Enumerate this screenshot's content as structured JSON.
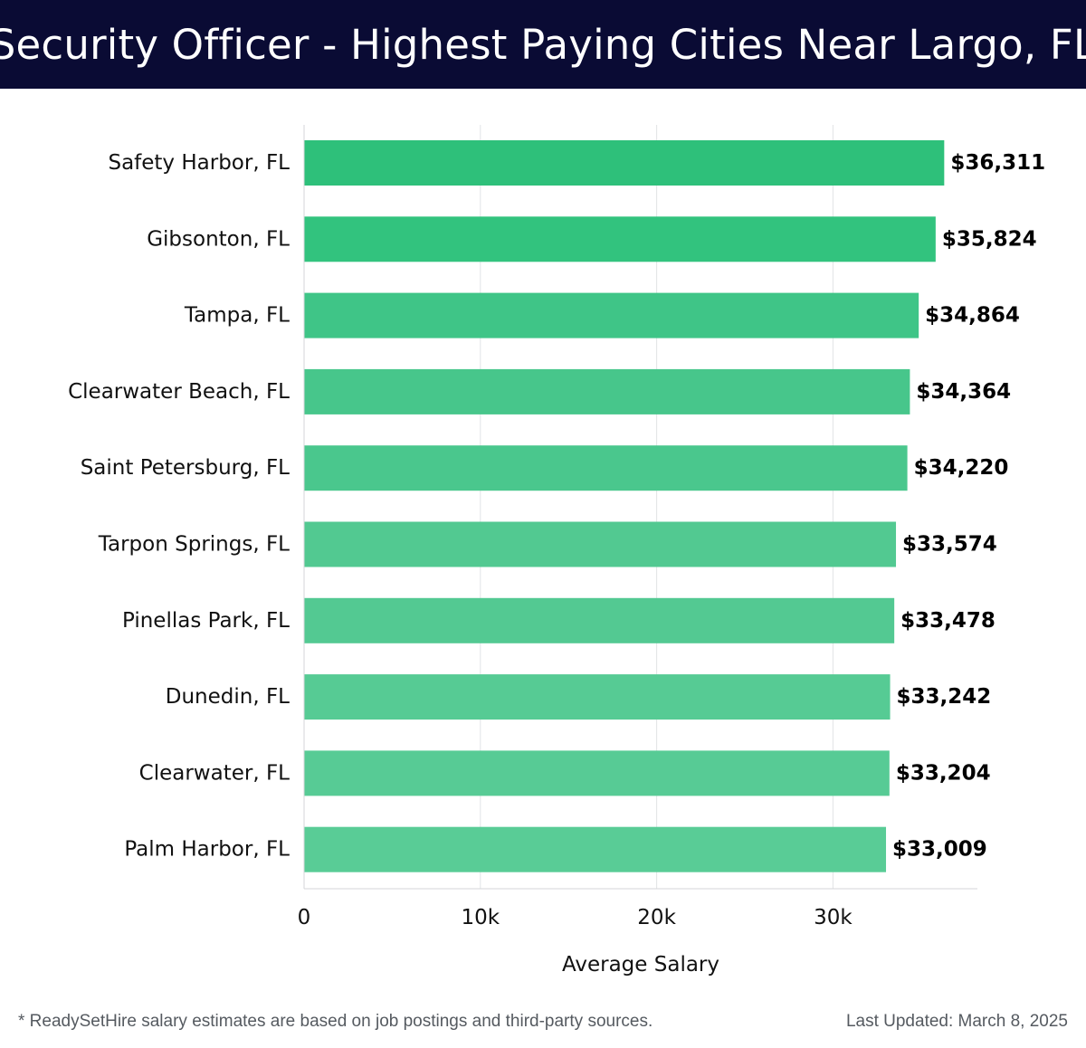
{
  "header": {
    "title": "Security Officer - Highest Paying Cities Near Largo, FL"
  },
  "chart_data": {
    "type": "bar",
    "orientation": "horizontal",
    "title": "Security Officer - Highest Paying Cities Near Largo, FL",
    "xlabel": "Average Salary",
    "ylabel": "",
    "xlim": [
      0,
      38200
    ],
    "xticks": [
      0,
      10000,
      20000,
      30000
    ],
    "xtick_labels": [
      "0",
      "10k",
      "20k",
      "30k"
    ],
    "grid": true,
    "categories": [
      "Safety Harbor, FL",
      "Gibsonton, FL",
      "Tampa, FL",
      "Clearwater Beach, FL",
      "Saint Petersburg, FL",
      "Tarpon Springs, FL",
      "Pinellas Park, FL",
      "Dunedin, FL",
      "Clearwater, FL",
      "Palm Harbor, FL"
    ],
    "values": [
      36311,
      35824,
      34864,
      34364,
      34220,
      33574,
      33478,
      33242,
      33204,
      33009
    ],
    "value_labels": [
      "$36,311",
      "$35,824",
      "$34,864",
      "$34,364",
      "$34,220",
      "$33,574",
      "$33,478",
      "$33,242",
      "$33,204",
      "$33,009"
    ],
    "colors": [
      "#2ec07a",
      "#32c37e",
      "#3fc587",
      "#47c68b",
      "#4ac78d",
      "#52c991",
      "#53c992",
      "#56cb94",
      "#57cb95",
      "#59cc96"
    ]
  },
  "footer": {
    "note": "* ReadySetHire salary estimates are based on job postings and third-party sources.",
    "updated": "Last Updated: March 8, 2025"
  }
}
